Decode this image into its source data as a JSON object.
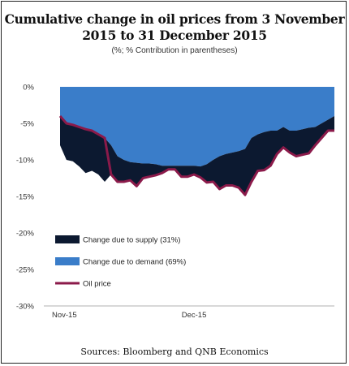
{
  "chart_data": {
    "type": "area",
    "title_line1": "Cumulative change in oil prices from 3 November",
    "title_line2": "2015 to 31 December 2015",
    "subtitle": "(%; % Contribution in parentheses)",
    "ylim": [
      -30,
      0
    ],
    "yticks": [
      "0%",
      "-5%",
      "-10%",
      "-15%",
      "-20%",
      "-25%",
      "-30%"
    ],
    "xticks": [
      {
        "label": "Nov-15",
        "index": 0
      },
      {
        "label": "Dec-15",
        "index": 21
      }
    ],
    "n_days": 44,
    "series": [
      {
        "name": "Change due to demand (69%)",
        "color": "#3a7dc9",
        "values": [
          -4.0,
          -5.0,
          -5.2,
          -5.5,
          -5.8,
          -6.0,
          -6.5,
          -7.0,
          -8.0,
          -9.5,
          -10.0,
          -10.3,
          -10.4,
          -10.5,
          -10.5,
          -10.6,
          -10.8,
          -10.8,
          -10.8,
          -10.8,
          -10.8,
          -10.8,
          -10.9,
          -10.6,
          -10.0,
          -9.5,
          -9.2,
          -9.0,
          -8.8,
          -8.5,
          -7.0,
          -6.5,
          -6.2,
          -6.0,
          -6.0,
          -5.5,
          -6.0,
          -6.0,
          -5.8,
          -5.6,
          -5.5,
          -5.0,
          -4.5,
          -4.0
        ]
      },
      {
        "name": "Change due to supply (31%)",
        "color": "#0c1930",
        "values": [
          -4.0,
          -5.0,
          -5.0,
          -5.4,
          -6.0,
          -5.5,
          -5.5,
          -6.0,
          -4.0,
          -3.5,
          -3.0,
          -2.5,
          -3.2,
          -2.0,
          -1.8,
          -1.5,
          -1.0,
          -0.5,
          -0.5,
          -1.5,
          -1.5,
          -1.2,
          -1.5,
          -2.5,
          -3.0,
          -4.5,
          -4.3,
          -4.5,
          -5.0,
          -6.3,
          -6.0,
          -5.0,
          -5.2,
          -4.8,
          -3.2,
          -2.8,
          -3.0,
          -3.5,
          -3.5,
          -3.5,
          -2.5,
          -2.0,
          -1.5,
          -2.0
        ]
      },
      {
        "name": "Oil price",
        "color": "#8b1a4a",
        "values": [
          -4.0,
          -5.0,
          -5.2,
          -5.5,
          -5.8,
          -6.0,
          -6.5,
          -7.0,
          -12.0,
          -13.0,
          -13.0,
          -12.8,
          -13.6,
          -12.5,
          -12.3,
          -12.1,
          -11.8,
          -11.3,
          -11.3,
          -12.3,
          -12.3,
          -12.0,
          -12.4,
          -13.1,
          -13.0,
          -14.0,
          -13.5,
          -13.5,
          -13.8,
          -14.8,
          -13.0,
          -11.5,
          -11.4,
          -10.8,
          -9.2,
          -8.3,
          -9.0,
          -9.5,
          -9.3,
          -9.1,
          -8.0,
          -7.0,
          -6.0,
          -6.0
        ]
      }
    ],
    "source": "Sources: Bloomberg and QNB Economics"
  }
}
